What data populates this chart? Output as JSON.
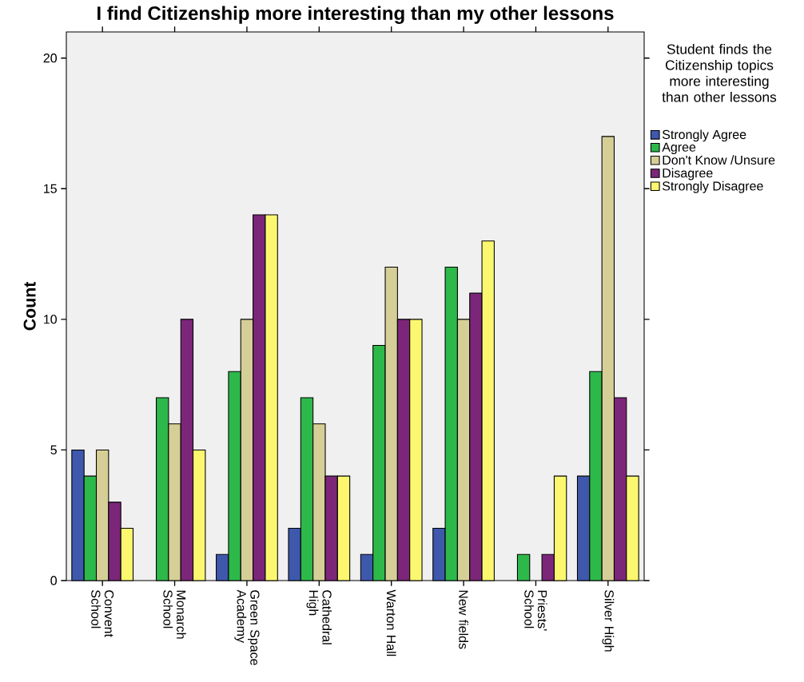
{
  "chart_data": {
    "type": "bar",
    "title": "I find Citizenship more interesting than my other lessons",
    "ylabel": "Count",
    "legend_title": "Student finds the Citizenship topics more interesting than other lessons",
    "categories": [
      "Convent School",
      "Monarch School",
      "Green Space Academy",
      "Cathedral High",
      "Warton Hall",
      "New fields",
      "Priests' School",
      "Silver High"
    ],
    "series": [
      {
        "name": "Strongly Agree",
        "color": "#3e58ac",
        "values": [
          5,
          null,
          1,
          2,
          1,
          2,
          null,
          4
        ]
      },
      {
        "name": "Agree",
        "color": "#2db84a",
        "values": [
          4,
          7,
          8,
          7,
          9,
          12,
          1,
          8
        ]
      },
      {
        "name": "Don't Know /Unsure",
        "color": "#d5cf97",
        "values": [
          5,
          6,
          10,
          6,
          12,
          10,
          null,
          17
        ]
      },
      {
        "name": "Disagree",
        "color": "#7b2679",
        "values": [
          3,
          10,
          14,
          4,
          10,
          11,
          1,
          7
        ]
      },
      {
        "name": "Strongly Disagree",
        "color": "#fbf870",
        "values": [
          2,
          5,
          14,
          4,
          10,
          13,
          4,
          4
        ]
      }
    ],
    "ylim": [
      0,
      21
    ],
    "yticks": [
      0,
      5,
      10,
      15,
      20
    ],
    "legend": "right"
  }
}
